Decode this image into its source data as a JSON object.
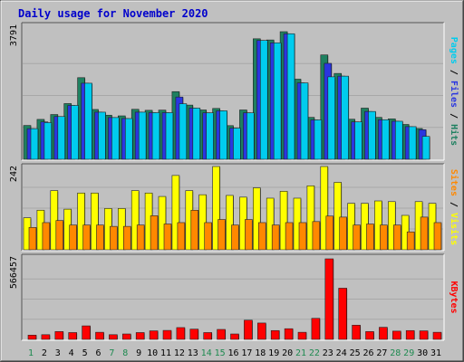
{
  "chart_data": {
    "type": "bar",
    "title": "Daily usage for November 2020",
    "categories": [
      "1",
      "2",
      "3",
      "4",
      "5",
      "6",
      "7",
      "8",
      "9",
      "10",
      "11",
      "12",
      "13",
      "14",
      "15",
      "16",
      "17",
      "18",
      "19",
      "20",
      "21",
      "22",
      "23",
      "24",
      "25",
      "26",
      "27",
      "28",
      "29",
      "30",
      "31"
    ],
    "weekend_days": [
      "1",
      "7",
      "8",
      "14",
      "15",
      "21",
      "22",
      "28",
      "29"
    ],
    "panels": [
      {
        "name": "pages-files-hits",
        "max_label": "3791",
        "ymax": 3791,
        "ylabel_parts": [
          "Pages",
          " / ",
          "Files",
          " / ",
          "Hits"
        ],
        "series": [
          {
            "name": "Hits",
            "color": "#1e8060",
            "values": [
              1005,
              1185,
              1330,
              1655,
              2425,
              1480,
              1310,
              1290,
              1485,
              1455,
              1460,
              2010,
              1610,
              1465,
              1510,
              1000,
              1465,
              3580,
              3545,
              3800,
              2380,
              1245,
              3100,
              2550,
              1190,
              1520,
              1245,
              1200,
              1035,
              915,
              0
            ]
          },
          {
            "name": "Files",
            "color": "#2a36e0",
            "values": [
              910,
              1110,
              1270,
              1600,
              2260,
              1400,
              1240,
              1210,
              1400,
              1385,
              1385,
              1850,
              1520,
              1380,
              1440,
              925,
              1380,
              3530,
              3460,
              3730,
              2270,
              1170,
              2850,
              2470,
              1110,
              1420,
              1175,
              1130,
              970,
              880,
              0
            ]
          },
          {
            "name": "Pages",
            "color": "#00ccee",
            "values": [
              910,
              1090,
              1270,
              1600,
              2260,
              1400,
              1240,
              1210,
              1400,
              1385,
              1385,
              1650,
              1520,
              1380,
              1440,
              925,
              1380,
              3530,
              3460,
              3730,
              2270,
              1170,
              2450,
              2470,
              1110,
              1420,
              1175,
              1130,
              970,
              680,
              0
            ]
          }
        ]
      },
      {
        "name": "visits-sites",
        "max_label": "242",
        "ymax": 242,
        "ylabel_parts": [
          "Sites",
          " / ",
          "Visits"
        ],
        "series": [
          {
            "name": "Visits",
            "color": "#ffff00",
            "values": [
              93,
              115,
              172,
              118,
              165,
              165,
              120,
              120,
              172,
              165,
              155,
              216,
              172,
              160,
              242,
              158,
              153,
              180,
              150,
              170,
              150,
              186,
              242,
              196,
              135,
              135,
              142,
              140,
              100,
              140,
              135
            ]
          },
          {
            "name": "Sites",
            "color": "#ff8800",
            "values": [
              65,
              79,
              85,
              72,
              72,
              72,
              68,
              68,
              72,
              99,
              75,
              79,
              115,
              79,
              88,
              72,
              88,
              79,
              72,
              79,
              79,
              82,
              98,
              95,
              72,
              75,
              72,
              72,
              52,
              95,
              79
            ]
          }
        ]
      },
      {
        "name": "kbytes",
        "max_label": "566457",
        "ymax": 566457,
        "ylabel_parts": [
          "KBytes"
        ],
        "series": [
          {
            "name": "KBytes",
            "color": "#ff0000",
            "values": [
              30000,
              33000,
              55000,
              48000,
              95000,
              50000,
              33000,
              38000,
              48000,
              60000,
              63000,
              83000,
              72000,
              48000,
              70000,
              38000,
              135000,
              115000,
              62000,
              75000,
              50000,
              148000,
              570000,
              360000,
              100000,
              55000,
              85000,
              58000,
              62000,
              60000,
              50000
            ]
          }
        ]
      }
    ]
  }
}
